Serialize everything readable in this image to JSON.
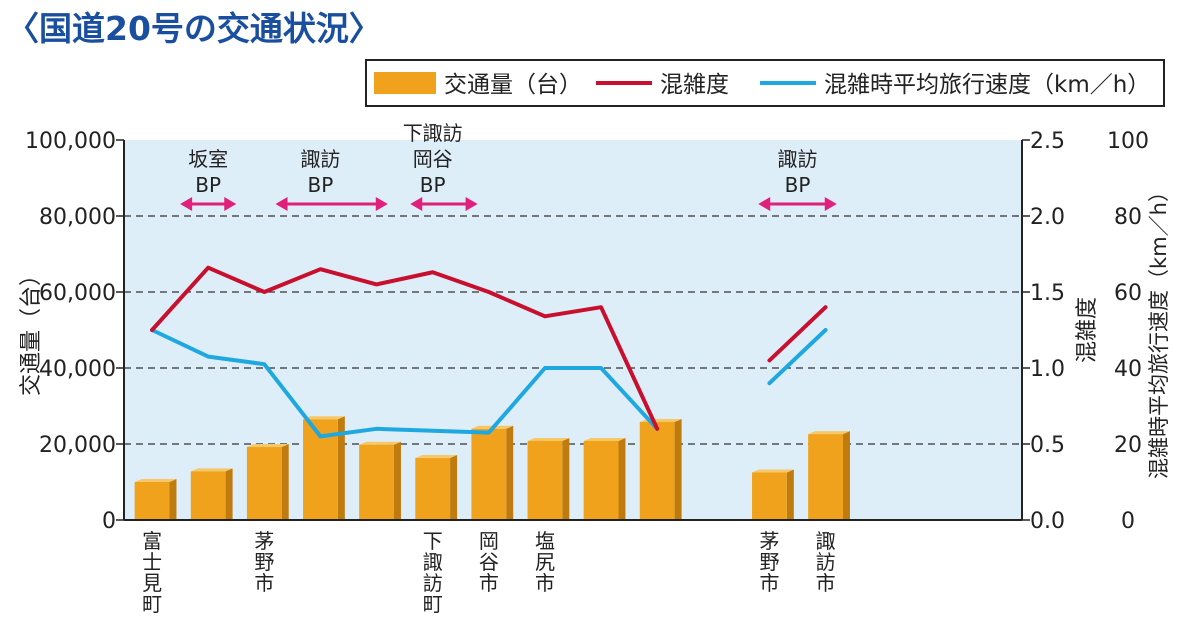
{
  "title": "〈国道20号の交通状況〉",
  "legend": {
    "traffic": "交通量（台）",
    "congestion": "混雑度",
    "speed": "混雑時平均旅行速度（km／h）"
  },
  "colors": {
    "bar": "#f0a21c",
    "bar_top": "#f7c867",
    "bar_side": "#c07b0e",
    "congestion": "#c8102e",
    "speed": "#1fa8e0",
    "plot_bg": "#ddeef9",
    "arrow": "#e0207a",
    "title": "#1a4fa0"
  },
  "chart_data": {
    "type": "bar",
    "categories": [
      "富士見町",
      "",
      "茅野市",
      "",
      "",
      "下諏訪町",
      "岡谷市",
      "塩尻市",
      "",
      "",
      "",
      "茅野市",
      "諏訪市",
      "",
      "",
      ""
    ],
    "category_lines": [
      [
        "富",
        "士",
        "見",
        "町"
      ],
      [],
      [
        "茅",
        "野",
        "市"
      ],
      [],
      [],
      [
        "下",
        "諏",
        "訪",
        "町"
      ],
      [
        "岡",
        "谷",
        "市"
      ],
      [
        "塩",
        "尻",
        "市"
      ],
      [],
      [],
      [],
      [
        "茅",
        "野",
        "市"
      ],
      [
        "諏",
        "訪",
        "市"
      ],
      [],
      [],
      []
    ],
    "series": [
      {
        "name": "交通量（台）",
        "axis": "left",
        "kind": "bar",
        "values": [
          10000,
          12800,
          19200,
          26500,
          19800,
          16300,
          24000,
          20800,
          20800,
          25800,
          null,
          12500,
          22600,
          null,
          null,
          null
        ]
      },
      {
        "name": "混雑度",
        "axis": "right1",
        "kind": "line",
        "segments": [
          [
            [
              0,
              1.25
            ],
            [
              1,
              1.66
            ],
            [
              2,
              1.5
            ],
            [
              3,
              1.65
            ],
            [
              4,
              1.55
            ],
            [
              5,
              1.63
            ],
            [
              6,
              1.5
            ],
            [
              7,
              1.34
            ],
            [
              8,
              1.4
            ],
            [
              9,
              0.6
            ]
          ],
          [
            [
              11,
              1.05
            ],
            [
              12,
              1.4
            ]
          ]
        ]
      },
      {
        "name": "混雑時平均旅行速度（km／h）",
        "axis": "right2",
        "kind": "line",
        "segments": [
          [
            [
              0,
              50
            ],
            [
              1,
              43
            ],
            [
              2,
              41
            ],
            [
              3,
              22
            ],
            [
              4,
              24
            ],
            [
              5,
              23.5
            ],
            [
              6,
              23
            ],
            [
              7,
              40
            ],
            [
              8,
              40
            ],
            [
              9,
              24
            ]
          ],
          [
            [
              11,
              36
            ],
            [
              12,
              50
            ]
          ]
        ]
      }
    ],
    "y_left": {
      "label": "交通量（台）",
      "min": 0,
      "max": 100000,
      "ticks": [
        "0",
        "20,000",
        "40,000",
        "60,000",
        "80,000",
        "100,000"
      ]
    },
    "y_right1": {
      "label": "混雑度",
      "min": 0,
      "max": 2.5,
      "ticks": [
        "0.0",
        "0.5",
        "1.0",
        "1.5",
        "2.0",
        "2.5"
      ]
    },
    "y_right2": {
      "label": "混雑時平均旅行速度（km／h）",
      "min": 0,
      "max": 100,
      "ticks": [
        "0",
        "20",
        "40",
        "60",
        "80",
        "100"
      ]
    },
    "grid": "dashed",
    "legend_position": "top-right",
    "annotations": [
      {
        "lines": [
          "坂室",
          "BP"
        ],
        "from": 0.5,
        "to": 1.5,
        "label_at": 1
      },
      {
        "lines": [
          "諏訪",
          "BP"
        ],
        "from": 2.2,
        "to": 4.2,
        "label_at": 3
      },
      {
        "lines": [
          "下諏訪",
          "岡谷",
          "BP"
        ],
        "from": 4.6,
        "to": 5.8,
        "label_at": 5
      },
      {
        "lines": [
          "諏訪",
          "BP"
        ],
        "from": 10.8,
        "to": 12.2,
        "label_at": 11.5
      }
    ]
  }
}
